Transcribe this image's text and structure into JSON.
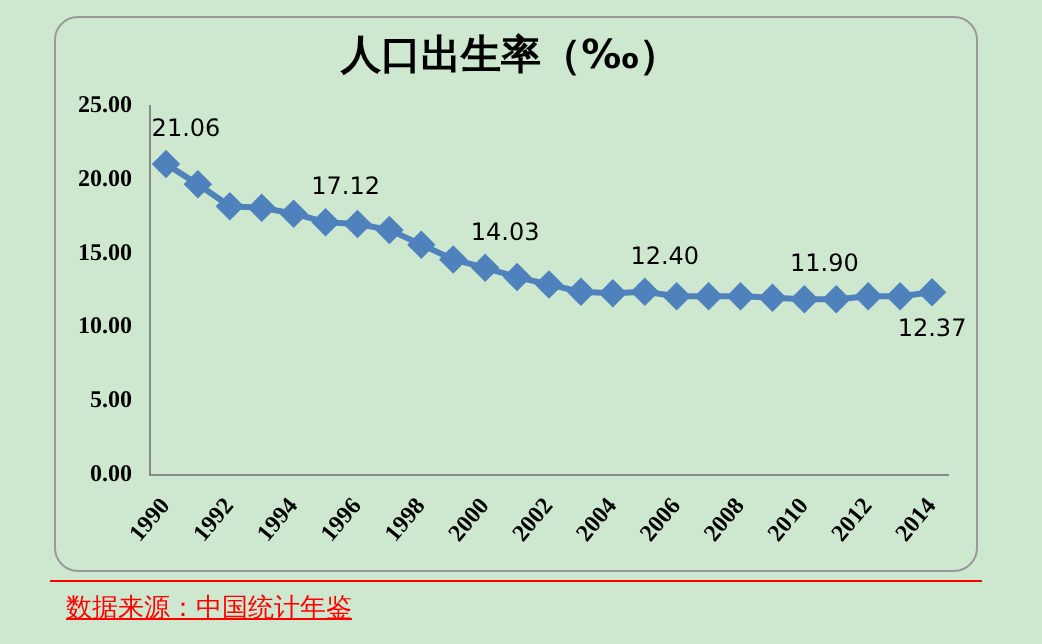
{
  "chart_data": {
    "type": "line",
    "title": "人口出生率（‰）",
    "categories": [
      "1990",
      null,
      "1992",
      null,
      "1994",
      null,
      "1996",
      null,
      "1998",
      null,
      "2000",
      null,
      "2002",
      null,
      "2004",
      null,
      "2006",
      null,
      "2008",
      null,
      "2010",
      null,
      "2012",
      null,
      "2014"
    ],
    "series": [
      {
        "color": "#4f81bd",
        "values": [
          21.06,
          19.7,
          18.2,
          18.1,
          17.7,
          17.12,
          17.0,
          16.6,
          15.6,
          14.6,
          14.03,
          13.4,
          12.9,
          12.4,
          12.3,
          12.4,
          12.1,
          12.1,
          12.1,
          12.0,
          11.9,
          11.9,
          12.1,
          12.1,
          12.37
        ],
        "value_labels": [
          "21.06",
          null,
          null,
          null,
          null,
          "17.12",
          null,
          null,
          null,
          null,
          "14.03",
          null,
          null,
          null,
          null,
          "12.40",
          null,
          null,
          null,
          null,
          "11.90",
          null,
          null,
          null,
          "12.37"
        ]
      }
    ],
    "ylim": [
      0,
      25
    ],
    "yticks": [
      {
        "value": 0,
        "label": "0.00"
      },
      {
        "value": 5,
        "label": "5.00"
      },
      {
        "value": 10,
        "label": "10.00"
      },
      {
        "value": 15,
        "label": "15.00"
      },
      {
        "value": 20,
        "label": "20.00"
      },
      {
        "value": 25,
        "label": "25.00"
      }
    ],
    "grid": false,
    "legend": false,
    "marker": "diamond",
    "line_style": "solid",
    "annotations": [
      "数据来源：中国统计年鉴"
    ]
  }
}
